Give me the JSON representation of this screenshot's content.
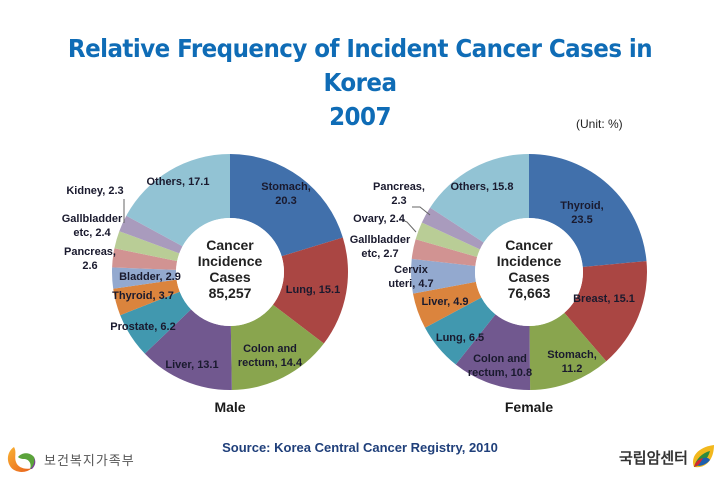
{
  "page": {
    "title_line1": "Relative Frequency of Incident Cancer Cases in Korea",
    "title_line2": "2007",
    "unit": "(Unit: %)",
    "source": "Source: Korea Central Cancer Registry, 2010",
    "logo_left_text": "보건복지가족부",
    "logo_right_text": "국립암센터"
  },
  "colors": {
    "title": "#0F6CB6",
    "slices": [
      "#4170AB",
      "#AA4643",
      "#89A54E",
      "#71588F",
      "#4198AF",
      "#DB843D",
      "#93A9CF",
      "#D19392",
      "#B9CD96",
      "#A99BBD",
      "#92C3D4"
    ]
  },
  "chart_data": [
    {
      "type": "pie",
      "subtype": "donut",
      "title": "Male",
      "center_label": [
        "Cancer",
        "Incidence",
        "Cases",
        "85,257"
      ],
      "total_cases": 85257,
      "unit": "%",
      "start": "12 o'clock, clockwise",
      "categories": [
        "Stomach",
        "Lung",
        "Colon and rectum",
        "Liver",
        "Prostate",
        "Thyroid",
        "Bladder",
        "Pancreas",
        "Gallbladder etc",
        "Kidney",
        "Others"
      ],
      "values": [
        20.3,
        15.1,
        14.4,
        13.1,
        6.2,
        3.7,
        2.9,
        2.6,
        2.4,
        2.3,
        17.1
      ],
      "labels": [
        "Stomach, 20.3",
        "Lung, 15.1",
        "Colon and rectum, 14.4",
        "Liver, 13.1",
        "Prostate, 6.2",
        "Thyroid, 3.7",
        "Bladder, 2.9",
        "Pancreas, 2.6",
        "Gallbladder etc, 2.4",
        "Kidney, 2.3",
        "Others, 17.1"
      ]
    },
    {
      "type": "pie",
      "subtype": "donut",
      "title": "Female",
      "center_label": [
        "Cancer",
        "Incidence",
        "Cases",
        "76,663"
      ],
      "total_cases": 76663,
      "unit": "%",
      "start": "12 o'clock, clockwise",
      "categories": [
        "Thyroid",
        "Breast",
        "Stomach",
        "Colon and rectum",
        "Lung",
        "Liver",
        "Cervix uteri",
        "Gallbladder etc",
        "Ovary",
        "Pancreas",
        "Others"
      ],
      "values": [
        23.5,
        15.1,
        11.2,
        10.8,
        6.5,
        4.9,
        4.7,
        2.7,
        2.4,
        2.3,
        15.8
      ],
      "labels": [
        "Thyroid, 23.5",
        "Breast, 15.1",
        "Stomach, 11.2",
        "Colon and rectum, 10.8",
        "Lung, 6.5",
        "Liver, 4.9",
        "Cervix uteri, 4.7",
        "Gallbladder etc, 2.7",
        "Ovary, 2.4",
        "Pancreas, 2.3",
        "Others, 15.8"
      ]
    }
  ]
}
